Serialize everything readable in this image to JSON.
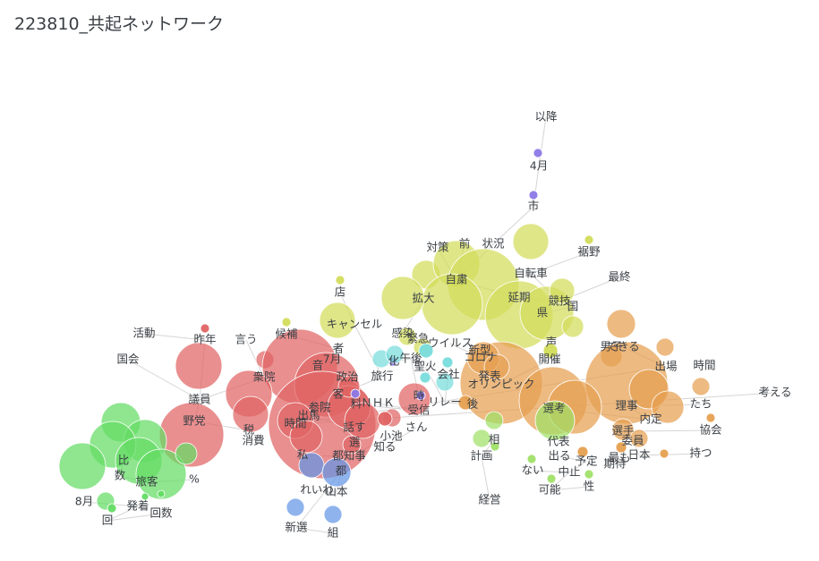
{
  "title": "223810_共起ネットワーク",
  "colors": {
    "red": "#e06464",
    "yellow": "#d2dc5a",
    "orange": "#e6a050",
    "green": "#64dc64",
    "blue": "#6496e6",
    "purple": "#8c78e6",
    "cyan": "#78dcdc",
    "lightgreen": "#a0e068",
    "edge": "#d5d5d5",
    "text": "#3a3f44"
  },
  "nodes": [
    {
      "id": "以降",
      "color": "purple"
    },
    {
      "id": "4月",
      "color": "purple"
    },
    {
      "id": "市",
      "color": "purple"
    },
    {
      "id": "対策",
      "color": "yellow"
    },
    {
      "id": "前",
      "color": "yellow"
    },
    {
      "id": "状況",
      "color": "yellow"
    },
    {
      "id": "裾野",
      "color": "yellow"
    },
    {
      "id": "自粛",
      "color": "yellow"
    },
    {
      "id": "自転車",
      "color": "yellow"
    },
    {
      "id": "最終",
      "color": "yellow"
    },
    {
      "id": "店",
      "color": "yellow"
    },
    {
      "id": "拡大",
      "color": "yellow"
    },
    {
      "id": "延期",
      "color": "yellow"
    },
    {
      "id": "競技",
      "color": "yellow"
    },
    {
      "id": "県",
      "color": "yellow"
    },
    {
      "id": "国",
      "color": "yellow"
    },
    {
      "id": "キャンセル",
      "color": "yellow"
    },
    {
      "id": "候補",
      "color": "yellow"
    },
    {
      "id": "感染",
      "color": "yellow"
    },
    {
      "id": "緊急",
      "color": "yellow"
    },
    {
      "id": "ウイルス",
      "color": "yellow"
    },
    {
      "id": "声",
      "color": "yellow"
    },
    {
      "id": "開催",
      "color": "yellow"
    },
    {
      "id": "活動",
      "color": "red"
    },
    {
      "id": "昨年",
      "color": "red"
    },
    {
      "id": "言う",
      "color": "red"
    },
    {
      "id": "国会",
      "color": "red"
    },
    {
      "id": "者",
      "color": "red"
    },
    {
      "id": "7月",
      "color": "red"
    },
    {
      "id": "音",
      "color": "red"
    },
    {
      "id": "衆院",
      "color": "red"
    },
    {
      "id": "政治",
      "color": "red"
    },
    {
      "id": "旅行",
      "color": "red"
    },
    {
      "id": "議員",
      "color": "red"
    },
    {
      "id": "客",
      "color": "red"
    },
    {
      "id": "参院",
      "color": "red"
    },
    {
      "id": "料",
      "color": "red"
    },
    {
      "id": "ＮＨＫ",
      "color": "red"
    },
    {
      "id": "受信",
      "color": "red"
    },
    {
      "id": "野党",
      "color": "red"
    },
    {
      "id": "税",
      "color": "red"
    },
    {
      "id": "時間",
      "color": "red"
    },
    {
      "id": "出馬",
      "color": "red"
    },
    {
      "id": "話す",
      "color": "red"
    },
    {
      "id": "さん",
      "color": "red"
    },
    {
      "id": "消費",
      "color": "red"
    },
    {
      "id": "選",
      "color": "red"
    },
    {
      "id": "小池",
      "color": "red"
    },
    {
      "id": "知る",
      "color": "red"
    },
    {
      "id": "私",
      "color": "red"
    },
    {
      "id": "都知事",
      "color": "red"
    },
    {
      "id": "午後",
      "color": "purple"
    },
    {
      "id": "化",
      "color": "purple"
    },
    {
      "id": "時",
      "color": "purple"
    },
    {
      "id": "聖火",
      "color": "cyan"
    },
    {
      "id": "リレー",
      "color": "cyan"
    },
    {
      "id": "会社",
      "color": "cyan"
    },
    {
      "id": "コロナ",
      "color": "orange"
    },
    {
      "id": "新型",
      "color": "orange"
    },
    {
      "id": "発表",
      "color": "orange"
    },
    {
      "id": "オリンピック",
      "color": "orange"
    },
    {
      "id": "後",
      "color": "orange"
    },
    {
      "id": "男子",
      "color": "orange"
    },
    {
      "id": "できる",
      "color": "orange"
    },
    {
      "id": "出場",
      "color": "orange"
    },
    {
      "id": "時間",
      "color": "orange"
    },
    {
      "id": "考える",
      "color": "orange"
    },
    {
      "id": "たち",
      "color": "orange"
    },
    {
      "id": "理事",
      "color": "orange"
    },
    {
      "id": "内定",
      "color": "orange"
    },
    {
      "id": "選考",
      "color": "orange"
    },
    {
      "id": "協会",
      "color": "orange"
    },
    {
      "id": "選手",
      "color": "orange"
    },
    {
      "id": "委員",
      "color": "orange"
    },
    {
      "id": "日本",
      "color": "orange"
    },
    {
      "id": "持つ",
      "color": "orange"
    },
    {
      "id": "代表",
      "color": "orange"
    },
    {
      "id": "出る",
      "color": "orange"
    },
    {
      "id": "予定",
      "color": "orange"
    },
    {
      "id": "期待",
      "color": "orange"
    },
    {
      "id": "最も",
      "color": "orange"
    },
    {
      "id": "中止",
      "color": "lightgreen"
    },
    {
      "id": "ない",
      "color": "lightgreen"
    },
    {
      "id": "可能",
      "color": "lightgreen"
    },
    {
      "id": "性",
      "color": "lightgreen"
    },
    {
      "id": "相",
      "color": "lightgreen"
    },
    {
      "id": "計画",
      "color": "lightgreen"
    },
    {
      "id": "経営",
      "color": "lightgreen"
    },
    {
      "id": "比",
      "color": "green"
    },
    {
      "id": "数",
      "color": "green"
    },
    {
      "id": "旅客",
      "color": "green"
    },
    {
      "id": "%",
      "color": "green"
    },
    {
      "id": "8月",
      "color": "green"
    },
    {
      "id": "発着",
      "color": "green"
    },
    {
      "id": "回",
      "color": "green"
    },
    {
      "id": "回数",
      "color": "green"
    },
    {
      "id": "れいわ",
      "color": "blue"
    },
    {
      "id": "山本",
      "color": "blue"
    },
    {
      "id": "都",
      "color": "blue"
    },
    {
      "id": "新選",
      "color": "blue"
    },
    {
      "id": "組",
      "color": "blue"
    }
  ],
  "edges": [
    [
      "以降",
      "4月"
    ],
    [
      "4月",
      "市"
    ],
    [
      "市",
      "状況"
    ],
    [
      "対策",
      "自粛"
    ],
    [
      "前",
      "自粛"
    ],
    [
      "状況",
      "自粛"
    ],
    [
      "裾野",
      "自転車"
    ],
    [
      "自転車",
      "競技"
    ],
    [
      "最終",
      "競技"
    ],
    [
      "店",
      "キャンセル"
    ],
    [
      "拡大",
      "感染"
    ],
    [
      "延期",
      "自粛"
    ],
    [
      "延期",
      "競技"
    ],
    [
      "県",
      "国"
    ],
    [
      "国",
      "競技"
    ],
    [
      "キャンセル",
      "旅行"
    ],
    [
      "候補",
      "者"
    ],
    [
      "感染",
      "緊急"
    ],
    [
      "ウイルス",
      "コロナ"
    ],
    [
      "声",
      "開催"
    ],
    [
      "開催",
      "オリンピック"
    ],
    [
      "活動",
      "昨年"
    ],
    [
      "昨年",
      "議員"
    ],
    [
      "言う",
      "衆院"
    ],
    [
      "国会",
      "議員"
    ],
    [
      "衆院",
      "議員"
    ],
    [
      "議員",
      "野党"
    ],
    [
      "政治",
      "参院"
    ],
    [
      "7月",
      "参院"
    ],
    [
      "参院",
      "選"
    ],
    [
      "野党",
      "税"
    ],
    [
      "税",
      "消費"
    ],
    [
      "受信",
      "料"
    ],
    [
      "ＮＨＫ",
      "受信"
    ],
    [
      "小池",
      "都知事"
    ],
    [
      "知る",
      "さん"
    ],
    [
      "私",
      "都知事"
    ],
    [
      "都知事",
      "選"
    ],
    [
      "出馬",
      "話す"
    ],
    [
      "客",
      "旅行"
    ],
    [
      "化",
      "午後"
    ],
    [
      "時",
      "午後"
    ],
    [
      "聖火",
      "リレー"
    ],
    [
      "リレー",
      "会社"
    ],
    [
      "コロナ",
      "新型"
    ],
    [
      "新型",
      "発表"
    ],
    [
      "発表",
      "オリンピック"
    ],
    [
      "後",
      "リレー"
    ],
    [
      "男子",
      "できる"
    ],
    [
      "できる",
      "出場"
    ],
    [
      "出場",
      "時間"
    ],
    [
      "考える",
      "時間"
    ],
    [
      "たち",
      "理事"
    ],
    [
      "理事",
      "内定"
    ],
    [
      "内定",
      "選考"
    ],
    [
      "選考",
      "代表"
    ],
    [
      "協会",
      "選手"
    ],
    [
      "選手",
      "委員"
    ],
    [
      "委員",
      "日本"
    ],
    [
      "持つ",
      "日本"
    ],
    [
      "出る",
      "予定"
    ],
    [
      "期待",
      "最も"
    ],
    [
      "予定",
      "中止"
    ],
    [
      "中止",
      "可能"
    ],
    [
      "可能",
      "性"
    ],
    [
      "ない",
      "中止"
    ],
    [
      "相",
      "計画"
    ],
    [
      "計画",
      "経営"
    ],
    [
      "比",
      "数"
    ],
    [
      "数",
      "旅客"
    ],
    [
      "旅客",
      "%"
    ],
    [
      "8月",
      "発着"
    ],
    [
      "発着",
      "回"
    ],
    [
      "回",
      "回数"
    ],
    [
      "れいわ",
      "山本"
    ],
    [
      "山本",
      "都"
    ],
    [
      "都",
      "新選"
    ],
    [
      "新選",
      "組"
    ]
  ]
}
